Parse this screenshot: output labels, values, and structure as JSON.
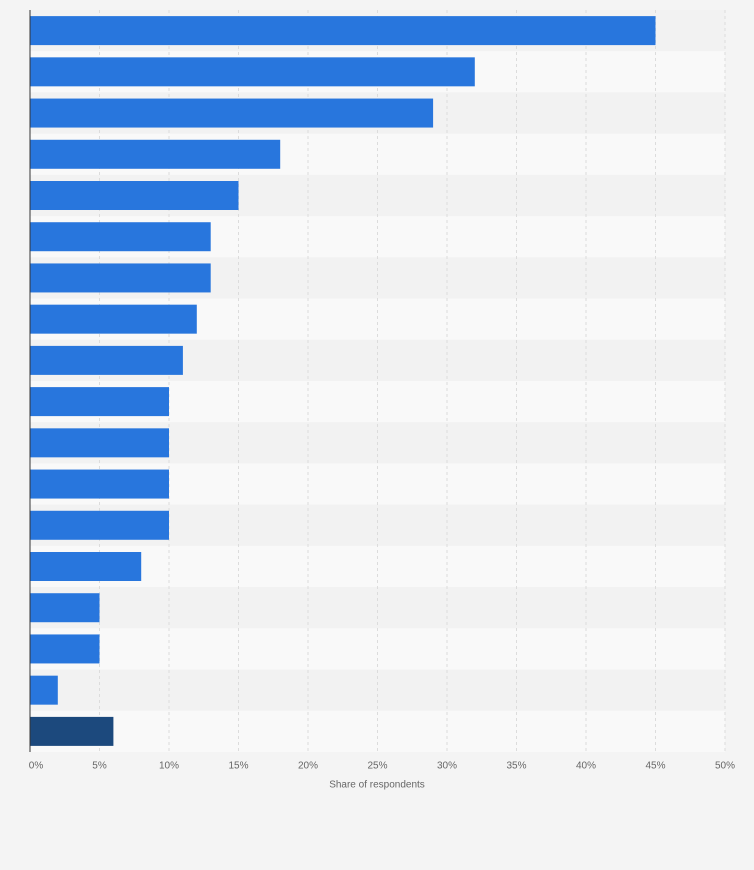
{
  "chart_data": {
    "type": "bar",
    "orientation": "horizontal",
    "x_label": "Share of respondents",
    "categories": [
      null,
      null,
      null,
      null,
      null,
      null,
      null,
      null,
      null,
      null,
      null,
      null,
      null,
      null,
      null,
      null,
      null,
      null
    ],
    "values": [
      45,
      32,
      29,
      18,
      15,
      13,
      13,
      12,
      11,
      10,
      10,
      10,
      10,
      8,
      5,
      5,
      2,
      6
    ],
    "colors": [
      "#2876dd",
      "#2876dd",
      "#2876dd",
      "#2876dd",
      "#2876dd",
      "#2876dd",
      "#2876dd",
      "#2876dd",
      "#2876dd",
      "#2876dd",
      "#2876dd",
      "#2876dd",
      "#2876dd",
      "#2876dd",
      "#2876dd",
      "#2876dd",
      "#2876dd",
      "#1c497d"
    ],
    "xlim": [
      0,
      50
    ],
    "xticks": [
      {
        "value": 0,
        "label": "0%"
      },
      {
        "value": 5,
        "label": "5%"
      },
      {
        "value": 10,
        "label": "10%"
      },
      {
        "value": 15,
        "label": "15%"
      },
      {
        "value": 20,
        "label": "20%"
      },
      {
        "value": 25,
        "label": "25%"
      },
      {
        "value": 30,
        "label": "30%"
      },
      {
        "value": 35,
        "label": "35%"
      },
      {
        "value": 40,
        "label": "40%"
      },
      {
        "value": 45,
        "label": "45%"
      },
      {
        "value": 50,
        "label": "50%"
      }
    ],
    "grid": true
  }
}
